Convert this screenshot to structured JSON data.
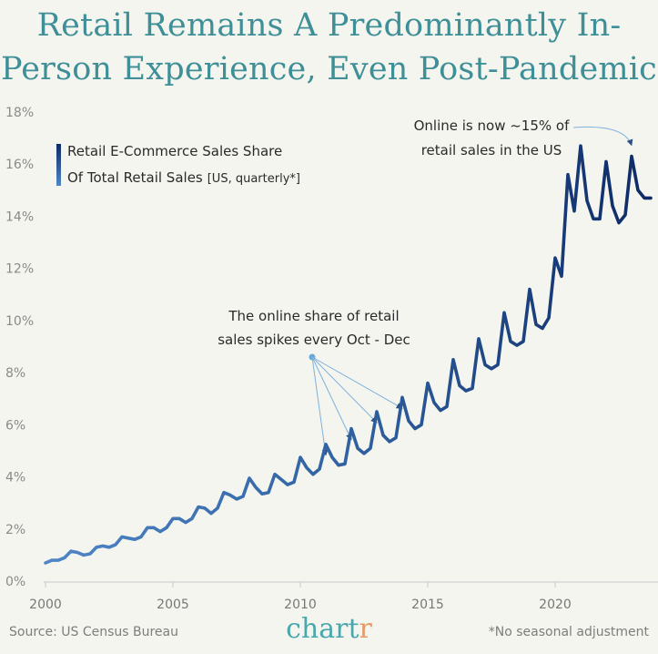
{
  "title_lines": [
    "Retail Remains A Predominantly In-",
    "Person Experience, Even Post-Pandemic"
  ],
  "legend": {
    "line1": "Retail E-Commerce Sales Share",
    "line2": "Of Total Retail Sales",
    "line2_suffix": "[US, quarterly*]"
  },
  "annotations": {
    "spikes_line1": "The online share of retail",
    "spikes_line2": "sales spikes every Oct - Dec",
    "online_line1": "Online is now ~15% of",
    "online_line2": "retail sales in the US"
  },
  "footer": {
    "source": "Source: US Census Bureau",
    "brand_main": "chart",
    "brand_accent": "r",
    "note": "*No seasonal adjustment"
  },
  "colors": {
    "title": "#3e8f97",
    "line_early": "#4f86c6",
    "line_late": "#0d2a66",
    "brand": "#4aa7ad",
    "brand_accent": "#e39b6a"
  },
  "chart_data": {
    "type": "line",
    "ylim": [
      0,
      18
    ],
    "xlim": [
      2000,
      2023.75
    ],
    "yticks": [
      "0%",
      "2%",
      "4%",
      "6%",
      "8%",
      "10%",
      "12%",
      "14%",
      "16%",
      "18%"
    ],
    "xticks": [
      "2000",
      "2005",
      "2010",
      "2015",
      "2020"
    ],
    "grid": false,
    "legend_position": "top-left",
    "x": [
      2000.0,
      2000.25,
      2000.5,
      2000.75,
      2001.0,
      2001.25,
      2001.5,
      2001.75,
      2002.0,
      2002.25,
      2002.5,
      2002.75,
      2003.0,
      2003.25,
      2003.5,
      2003.75,
      2004.0,
      2004.25,
      2004.5,
      2004.75,
      2005.0,
      2005.25,
      2005.5,
      2005.75,
      2006.0,
      2006.25,
      2006.5,
      2006.75,
      2007.0,
      2007.25,
      2007.5,
      2007.75,
      2008.0,
      2008.25,
      2008.5,
      2008.75,
      2009.0,
      2009.25,
      2009.5,
      2009.75,
      2010.0,
      2010.25,
      2010.5,
      2010.75,
      2011.0,
      2011.25,
      2011.5,
      2011.75,
      2012.0,
      2012.25,
      2012.5,
      2012.75,
      2013.0,
      2013.25,
      2013.5,
      2013.75,
      2014.0,
      2014.25,
      2014.5,
      2014.75,
      2015.0,
      2015.25,
      2015.5,
      2015.75,
      2016.0,
      2016.25,
      2016.5,
      2016.75,
      2017.0,
      2017.25,
      2017.5,
      2017.75,
      2018.0,
      2018.25,
      2018.5,
      2018.75,
      2019.0,
      2019.25,
      2019.5,
      2019.75,
      2020.0,
      2020.25,
      2020.5,
      2020.75,
      2021.0,
      2021.25,
      2021.5,
      2021.75,
      2022.0,
      2022.25,
      2022.5,
      2022.75,
      2023.0,
      2023.25,
      2023.5,
      2023.75
    ],
    "values": [
      0.7,
      0.8,
      0.8,
      0.9,
      1.15,
      1.1,
      1.0,
      1.05,
      1.3,
      1.35,
      1.3,
      1.4,
      1.7,
      1.65,
      1.6,
      1.7,
      2.05,
      2.05,
      1.9,
      2.05,
      2.4,
      2.4,
      2.25,
      2.4,
      2.85,
      2.8,
      2.6,
      2.8,
      3.4,
      3.3,
      3.15,
      3.25,
      3.95,
      3.6,
      3.35,
      3.4,
      4.1,
      3.9,
      3.7,
      3.8,
      4.75,
      4.35,
      4.1,
      4.3,
      5.25,
      4.75,
      4.45,
      4.5,
      5.85,
      5.1,
      4.9,
      5.1,
      6.5,
      5.6,
      5.35,
      5.5,
      7.05,
      6.15,
      5.85,
      6.0,
      7.6,
      6.85,
      6.55,
      6.7,
      8.5,
      7.5,
      7.3,
      7.4,
      9.3,
      8.3,
      8.15,
      8.3,
      10.3,
      9.2,
      9.05,
      9.2,
      11.2,
      9.85,
      9.7,
      10.1,
      12.4,
      11.7,
      15.6,
      14.2,
      16.7,
      14.6,
      13.9,
      13.9,
      16.1,
      14.4,
      13.75,
      14.05,
      16.3,
      15.0,
      14.7,
      14.7
    ],
    "annotation_targets": [
      2011.0,
      2012.0,
      2013.0,
      2014.0,
      2023.0
    ]
  }
}
